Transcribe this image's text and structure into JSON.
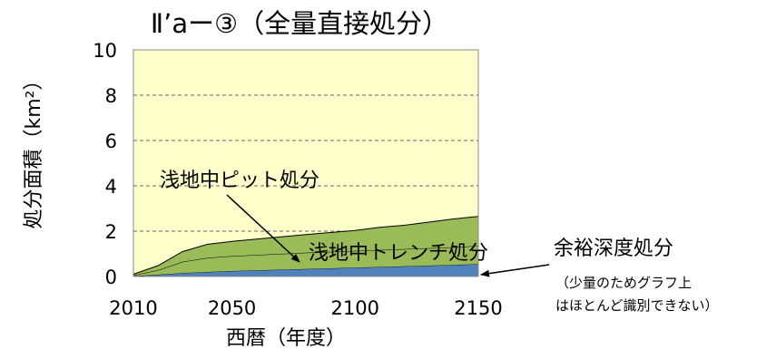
{
  "chart_data": {
    "type": "area",
    "title": "Ⅱ’aー③（全量直接処分）",
    "xlabel": "西暦（年度）",
    "ylabel": "処分面積（km²）",
    "xlim": [
      2010,
      2150
    ],
    "ylim": [
      0,
      10
    ],
    "x_ticks": [
      "2010",
      "2050",
      "2100",
      "2150"
    ],
    "y_ticks": [
      "0",
      "2",
      "4",
      "6",
      "8",
      "10"
    ],
    "grid": "horizontal-dashed",
    "plot_background": "#FFFFCC",
    "stacking": "stacked",
    "series": [
      {
        "name": "余裕深度処分",
        "color": "#4F81BD",
        "x": [
          2010,
          2020,
          2030,
          2040,
          2050,
          2060,
          2070,
          2080,
          2090,
          2100,
          2110,
          2120,
          2130,
          2140,
          2150
        ],
        "values": [
          0.02,
          0.08,
          0.15,
          0.2,
          0.24,
          0.27,
          0.3,
          0.33,
          0.36,
          0.39,
          0.42,
          0.45,
          0.48,
          0.51,
          0.55
        ]
      },
      {
        "name": "浅地中トレンチ処分",
        "color": "#9BBB59",
        "x": [
          2010,
          2020,
          2030,
          2040,
          2050,
          2060,
          2070,
          2080,
          2090,
          2100,
          2110,
          2120,
          2130,
          2140,
          2150
        ],
        "values": [
          0.03,
          0.2,
          0.5,
          0.62,
          0.66,
          0.68,
          0.7,
          0.72,
          0.73,
          0.74,
          0.75,
          0.76,
          0.77,
          0.78,
          0.8
        ]
      },
      {
        "name": "浅地中ピット処分",
        "color": "#9BBB59",
        "x": [
          2010,
          2020,
          2030,
          2040,
          2050,
          2060,
          2070,
          2080,
          2090,
          2100,
          2110,
          2120,
          2130,
          2140,
          2150
        ],
        "values": [
          0.05,
          0.2,
          0.45,
          0.6,
          0.65,
          0.7,
          0.75,
          0.8,
          0.85,
          0.9,
          1.0,
          1.05,
          1.15,
          1.25,
          1.3
        ]
      }
    ],
    "annotations": {
      "pit": "浅地中ピット処分",
      "trench": "浅地中トレンチ処分",
      "yoyu": "余裕深度処分",
      "note_line1": "（少量のためグラフ上",
      "note_line2": "はほとんど識別できない）"
    }
  }
}
